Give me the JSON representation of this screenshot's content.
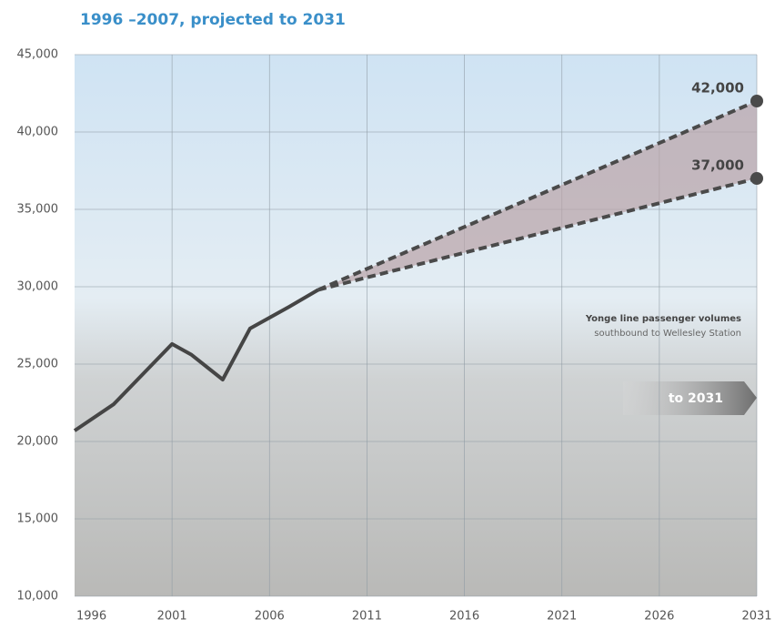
{
  "chart_data": {
    "type": "line",
    "title": "1996 –2007, projected to 2031",
    "annotations": [
      "Yonge line passenger volumes",
      "southbound to Wellesley Station",
      "to 2031"
    ],
    "xlim": [
      1996,
      2031
    ],
    "xticks": [
      1996,
      2001,
      2006,
      2011,
      2016,
      2021,
      2026,
      2031
    ],
    "ylim": [
      10000,
      45000
    ],
    "yticks": [
      {
        "value": 10000,
        "label": "10,000"
      },
      {
        "value": 15000,
        "label": "15,000"
      },
      {
        "value": 20000,
        "label": "20,000"
      },
      {
        "value": 25000,
        "label": "25,000"
      },
      {
        "value": 30000,
        "label": "30,000"
      },
      {
        "value": 35000,
        "label": "35,000"
      },
      {
        "value": 40000,
        "label": "40,000"
      },
      {
        "value": 45000,
        "label": "45,000"
      }
    ],
    "grid": true,
    "series": [
      {
        "color": "#454545",
        "dash": false,
        "x": [
          1996,
          1998,
          2000,
          2001,
          2002,
          2003.6,
          2005,
          2006,
          2007,
          2008.5
        ],
        "values": [
          20700,
          22400,
          25000,
          26300,
          25600,
          24000,
          27300,
          28000,
          28700,
          29800
        ]
      },
      {
        "color": "#4a4a4a",
        "dash": true,
        "x": [
          2008.5,
          2031
        ],
        "values": [
          29800,
          42000
        ],
        "value_labels": [
          null,
          "42,000"
        ]
      },
      {
        "color": "#4a4a4a",
        "dash": true,
        "x": [
          2008.5,
          2031
        ],
        "values": [
          29800,
          37000
        ],
        "value_labels": [
          null,
          "37,000"
        ]
      }
    ]
  }
}
